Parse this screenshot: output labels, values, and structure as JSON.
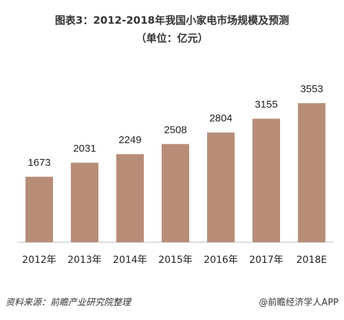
{
  "chart_data": {
    "type": "bar",
    "title": "图表3：2012-2018年我国小家电市场规模及预测",
    "subtitle": "（单位：亿元）",
    "categories": [
      "2012年",
      "2013年",
      "2014年",
      "2015年",
      "2016年",
      "2017年",
      "2018E"
    ],
    "values": [
      1673,
      2031,
      2249,
      2508,
      2804,
      3155,
      3553
    ],
    "color": "#b88d78",
    "source": "资料来源：前瞻产业研究院整理",
    "credit": "@前瞻经济学人APP"
  }
}
